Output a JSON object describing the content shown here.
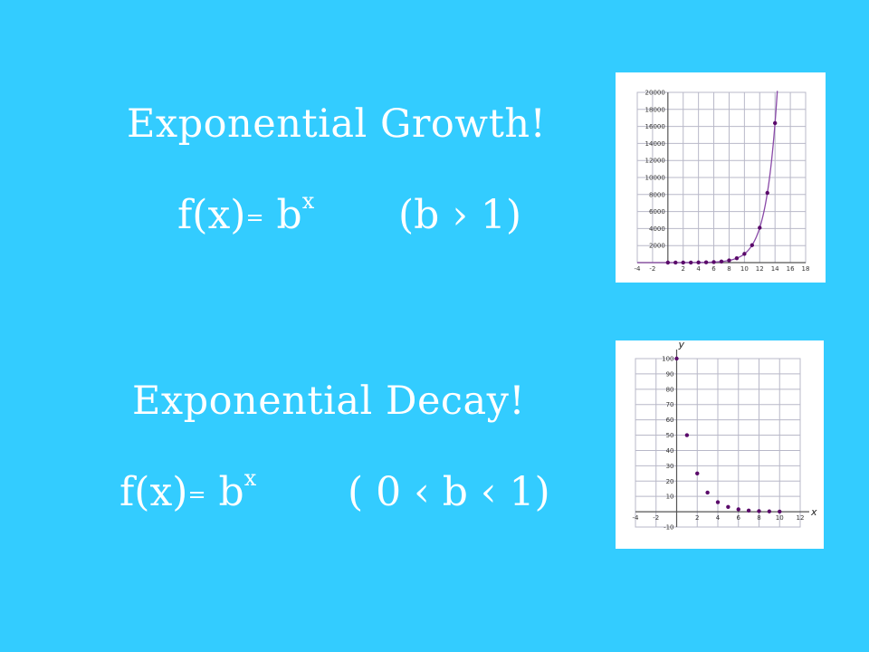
{
  "colors": {
    "background": "#33ccff",
    "text": "#ffffff",
    "curve": "#8a4aa8",
    "points": "#5a0a6a",
    "grid": "#b8b8c8",
    "axis": "#555555"
  },
  "growth": {
    "heading": "Exponential Growth!",
    "formula_base": "f(x)",
    "formula_eq": "=",
    "formula_b": "b",
    "formula_exp": "x",
    "condition": "(b › 1)"
  },
  "decay": {
    "heading": "Exponential Decay!",
    "formula_base": "f(x)",
    "formula_eq": "=",
    "formula_b": "b",
    "formula_exp": "x",
    "condition": "( 0 ‹ b ‹ 1)"
  },
  "chart_data": [
    {
      "type": "scatter",
      "title": "",
      "xlabel": "",
      "ylabel": "",
      "xlim": [
        -4,
        18
      ],
      "ylim": [
        0,
        20000
      ],
      "grid": true,
      "x_ticks": [
        "-4",
        "-2",
        "2",
        "4",
        "6",
        "8",
        "10",
        "12",
        "14",
        "16",
        "18"
      ],
      "y_ticks": [
        "2000",
        "4000",
        "6000",
        "8000",
        "10000",
        "12000",
        "14000",
        "16000",
        "18000",
        "20000"
      ],
      "x": [
        0,
        1,
        2,
        3,
        4,
        5,
        6,
        7,
        8,
        9,
        10,
        11,
        12,
        13,
        14
      ],
      "y": [
        1,
        2,
        4,
        8,
        16,
        32,
        64,
        128,
        256,
        512,
        1024,
        2048,
        4096,
        8192,
        16384
      ]
    },
    {
      "type": "scatter",
      "title": "",
      "xlabel": "x",
      "ylabel": "y",
      "xlim": [
        -4,
        12
      ],
      "ylim": [
        -10,
        100
      ],
      "grid": true,
      "x_ticks": [
        "-4",
        "-2",
        "2",
        "4",
        "6",
        "8",
        "10",
        "12"
      ],
      "y_ticks": [
        "-10",
        "10",
        "20",
        "30",
        "40",
        "50",
        "60",
        "70",
        "80",
        "90",
        "100"
      ],
      "x": [
        0,
        1,
        2,
        3,
        4,
        5,
        6,
        7,
        8,
        9,
        10
      ],
      "y": [
        100,
        50,
        25,
        12.5,
        6.25,
        3.125,
        1.5625,
        0.78,
        0.39,
        0.2,
        0.1
      ]
    }
  ]
}
